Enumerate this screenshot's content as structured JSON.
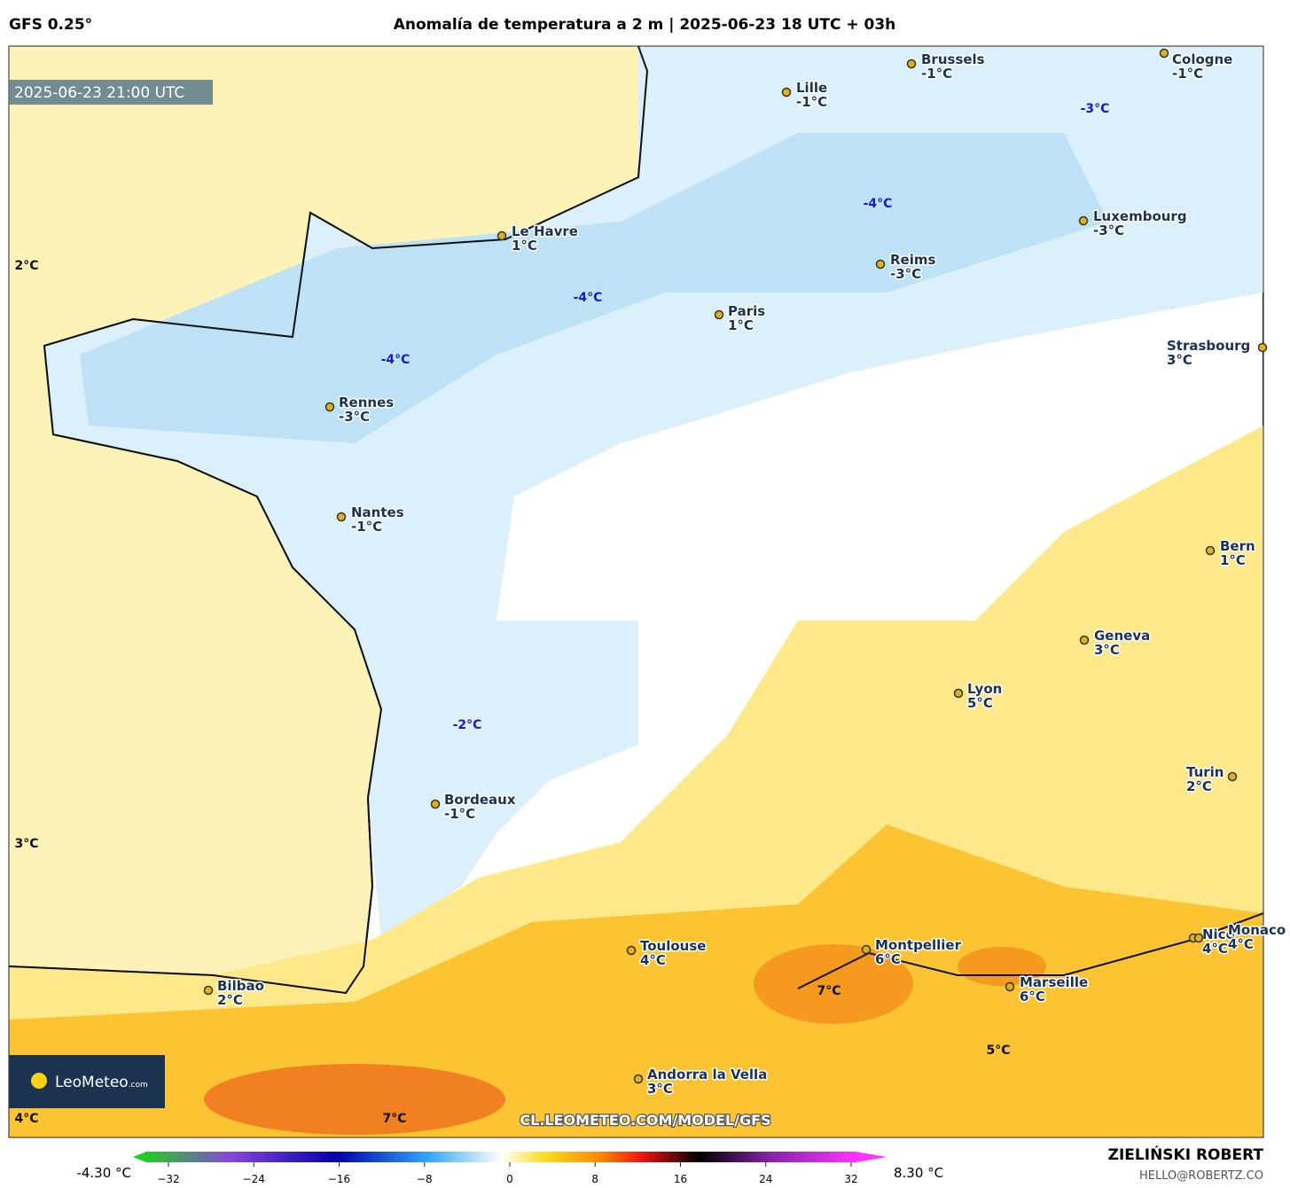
{
  "header": {
    "model": "GFS 0.25°",
    "title": "Anomalía de temperatura a 2 m | 2025-06-23 18 UTC + 03h"
  },
  "map": {
    "timestamp": "2025-06-23 21:00 UTC",
    "cities": [
      {
        "name": "Brussels",
        "value": "-1°C"
      },
      {
        "name": "Cologne",
        "value": "-1°C"
      },
      {
        "name": "Lille",
        "value": "-1°C"
      },
      {
        "name": "Luxembourg",
        "value": "-3°C"
      },
      {
        "name": "Le Havre",
        "value": "1°C"
      },
      {
        "name": "Reims",
        "value": "-3°C"
      },
      {
        "name": "Paris",
        "value": "1°C"
      },
      {
        "name": "Strasbourg",
        "value": "3°C"
      },
      {
        "name": "Rennes",
        "value": "-3°C"
      },
      {
        "name": "Nantes",
        "value": "-1°C"
      },
      {
        "name": "Bern",
        "value": "1°C"
      },
      {
        "name": "Geneva",
        "value": "3°C"
      },
      {
        "name": "Lyon",
        "value": "5°C"
      },
      {
        "name": "Turin",
        "value": "2°C"
      },
      {
        "name": "Bordeaux",
        "value": "-1°C"
      },
      {
        "name": "Toulouse",
        "value": "4°C"
      },
      {
        "name": "Montpellier",
        "value": "6°C"
      },
      {
        "name": "Nice",
        "value": "4°C"
      },
      {
        "name": "Monaco",
        "value": "4°C"
      },
      {
        "name": "Marseille",
        "value": "6°C"
      },
      {
        "name": "Bilbao",
        "value": "2°C"
      },
      {
        "name": "Andorra la Vella",
        "value": "3°C"
      }
    ],
    "blue_labels": [
      "-3°C",
      "-4°C",
      "-4°C",
      "-4°C",
      "-2°C"
    ],
    "labels": [
      "2°C",
      "3°C",
      "4°C",
      "7°C",
      "5°C",
      "7°C"
    ],
    "watermark": "CL.LEOMETEO.COM/MODEL/GFS",
    "logo": {
      "brand": "LeoMeteo",
      "suffix": ".com"
    }
  },
  "colorbar": {
    "min_label": "-4.30 °C",
    "max_label": "8.30 °C",
    "ticks": [
      {
        "value": -32,
        "label": "−32"
      },
      {
        "value": -24,
        "label": "−24"
      },
      {
        "value": -16,
        "label": "−16"
      },
      {
        "value": -8,
        "label": "−8"
      },
      0,
      8,
      16,
      24,
      32
    ]
  },
  "footer": {
    "author": "ZIELIŃSKI ROBERT",
    "email": "HELLO@ROBERTZ.CO"
  }
}
